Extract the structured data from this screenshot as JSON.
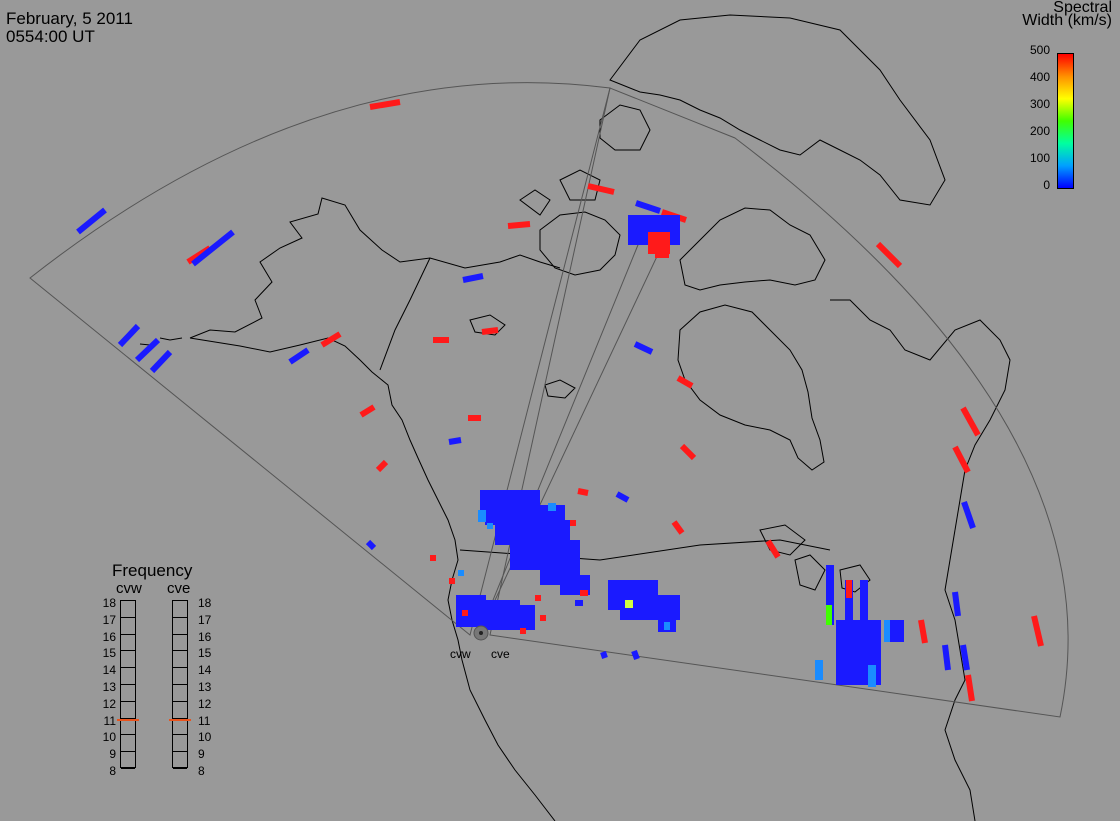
{
  "header": {
    "date": "February, 5 2011",
    "time": "0554:00 UT"
  },
  "colorbar": {
    "title_line1": "Spectral",
    "title_line2": "Width (km/s)",
    "ticks": [
      "500",
      "400",
      "300",
      "200",
      "100",
      "0"
    ],
    "range": [
      0,
      500
    ],
    "colors": [
      "#0000ff",
      "#00a0ff",
      "#00ffa0",
      "#40ff00",
      "#ffff00",
      "#ff9000",
      "#ff0000"
    ]
  },
  "frequency_panel": {
    "title": "Frequency",
    "radars": [
      {
        "name": "cvw",
        "value_mhz": 10.9
      },
      {
        "name": "cve",
        "value_mhz": 10.9
      }
    ],
    "scale": [
      "18",
      "17",
      "16",
      "15",
      "14",
      "13",
      "12",
      "11",
      "10",
      "9",
      "8"
    ],
    "marker_color": "#e8531d"
  },
  "radar_sites": [
    {
      "name": "cvw"
    },
    {
      "name": "cve"
    }
  ],
  "map_style": {
    "background": "#999999",
    "coastline": "#000000",
    "fov_outline": "#555555"
  }
}
